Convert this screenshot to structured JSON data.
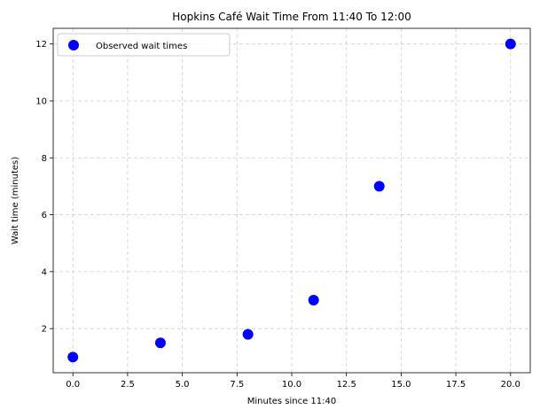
{
  "chart_data": {
    "type": "scatter",
    "title": "Hopkins Café Wait Time From 11:40 To 12:00",
    "xlabel": "Minutes since 11:40",
    "ylabel": "Wait time (minutes)",
    "xlim": [
      -0.9,
      20.9
    ],
    "ylim": [
      0.45,
      12.55
    ],
    "xticks": [
      0.0,
      2.5,
      5.0,
      7.5,
      10.0,
      12.5,
      15.0,
      17.5,
      20.0
    ],
    "xtick_labels": [
      "0.0",
      "2.5",
      "5.0",
      "7.5",
      "10.0",
      "12.5",
      "15.0",
      "17.5",
      "20.0"
    ],
    "yticks": [
      2,
      4,
      6,
      8,
      10,
      12
    ],
    "ytick_labels": [
      "2",
      "4",
      "6",
      "8",
      "10",
      "12"
    ],
    "grid": true,
    "legend": "top-left",
    "series": [
      {
        "name": "Observed wait times",
        "color": "#0000ff",
        "x": [
          0,
          4,
          8,
          11,
          14,
          20
        ],
        "y": [
          1,
          1.5,
          1.8,
          3,
          7,
          12
        ]
      }
    ]
  }
}
